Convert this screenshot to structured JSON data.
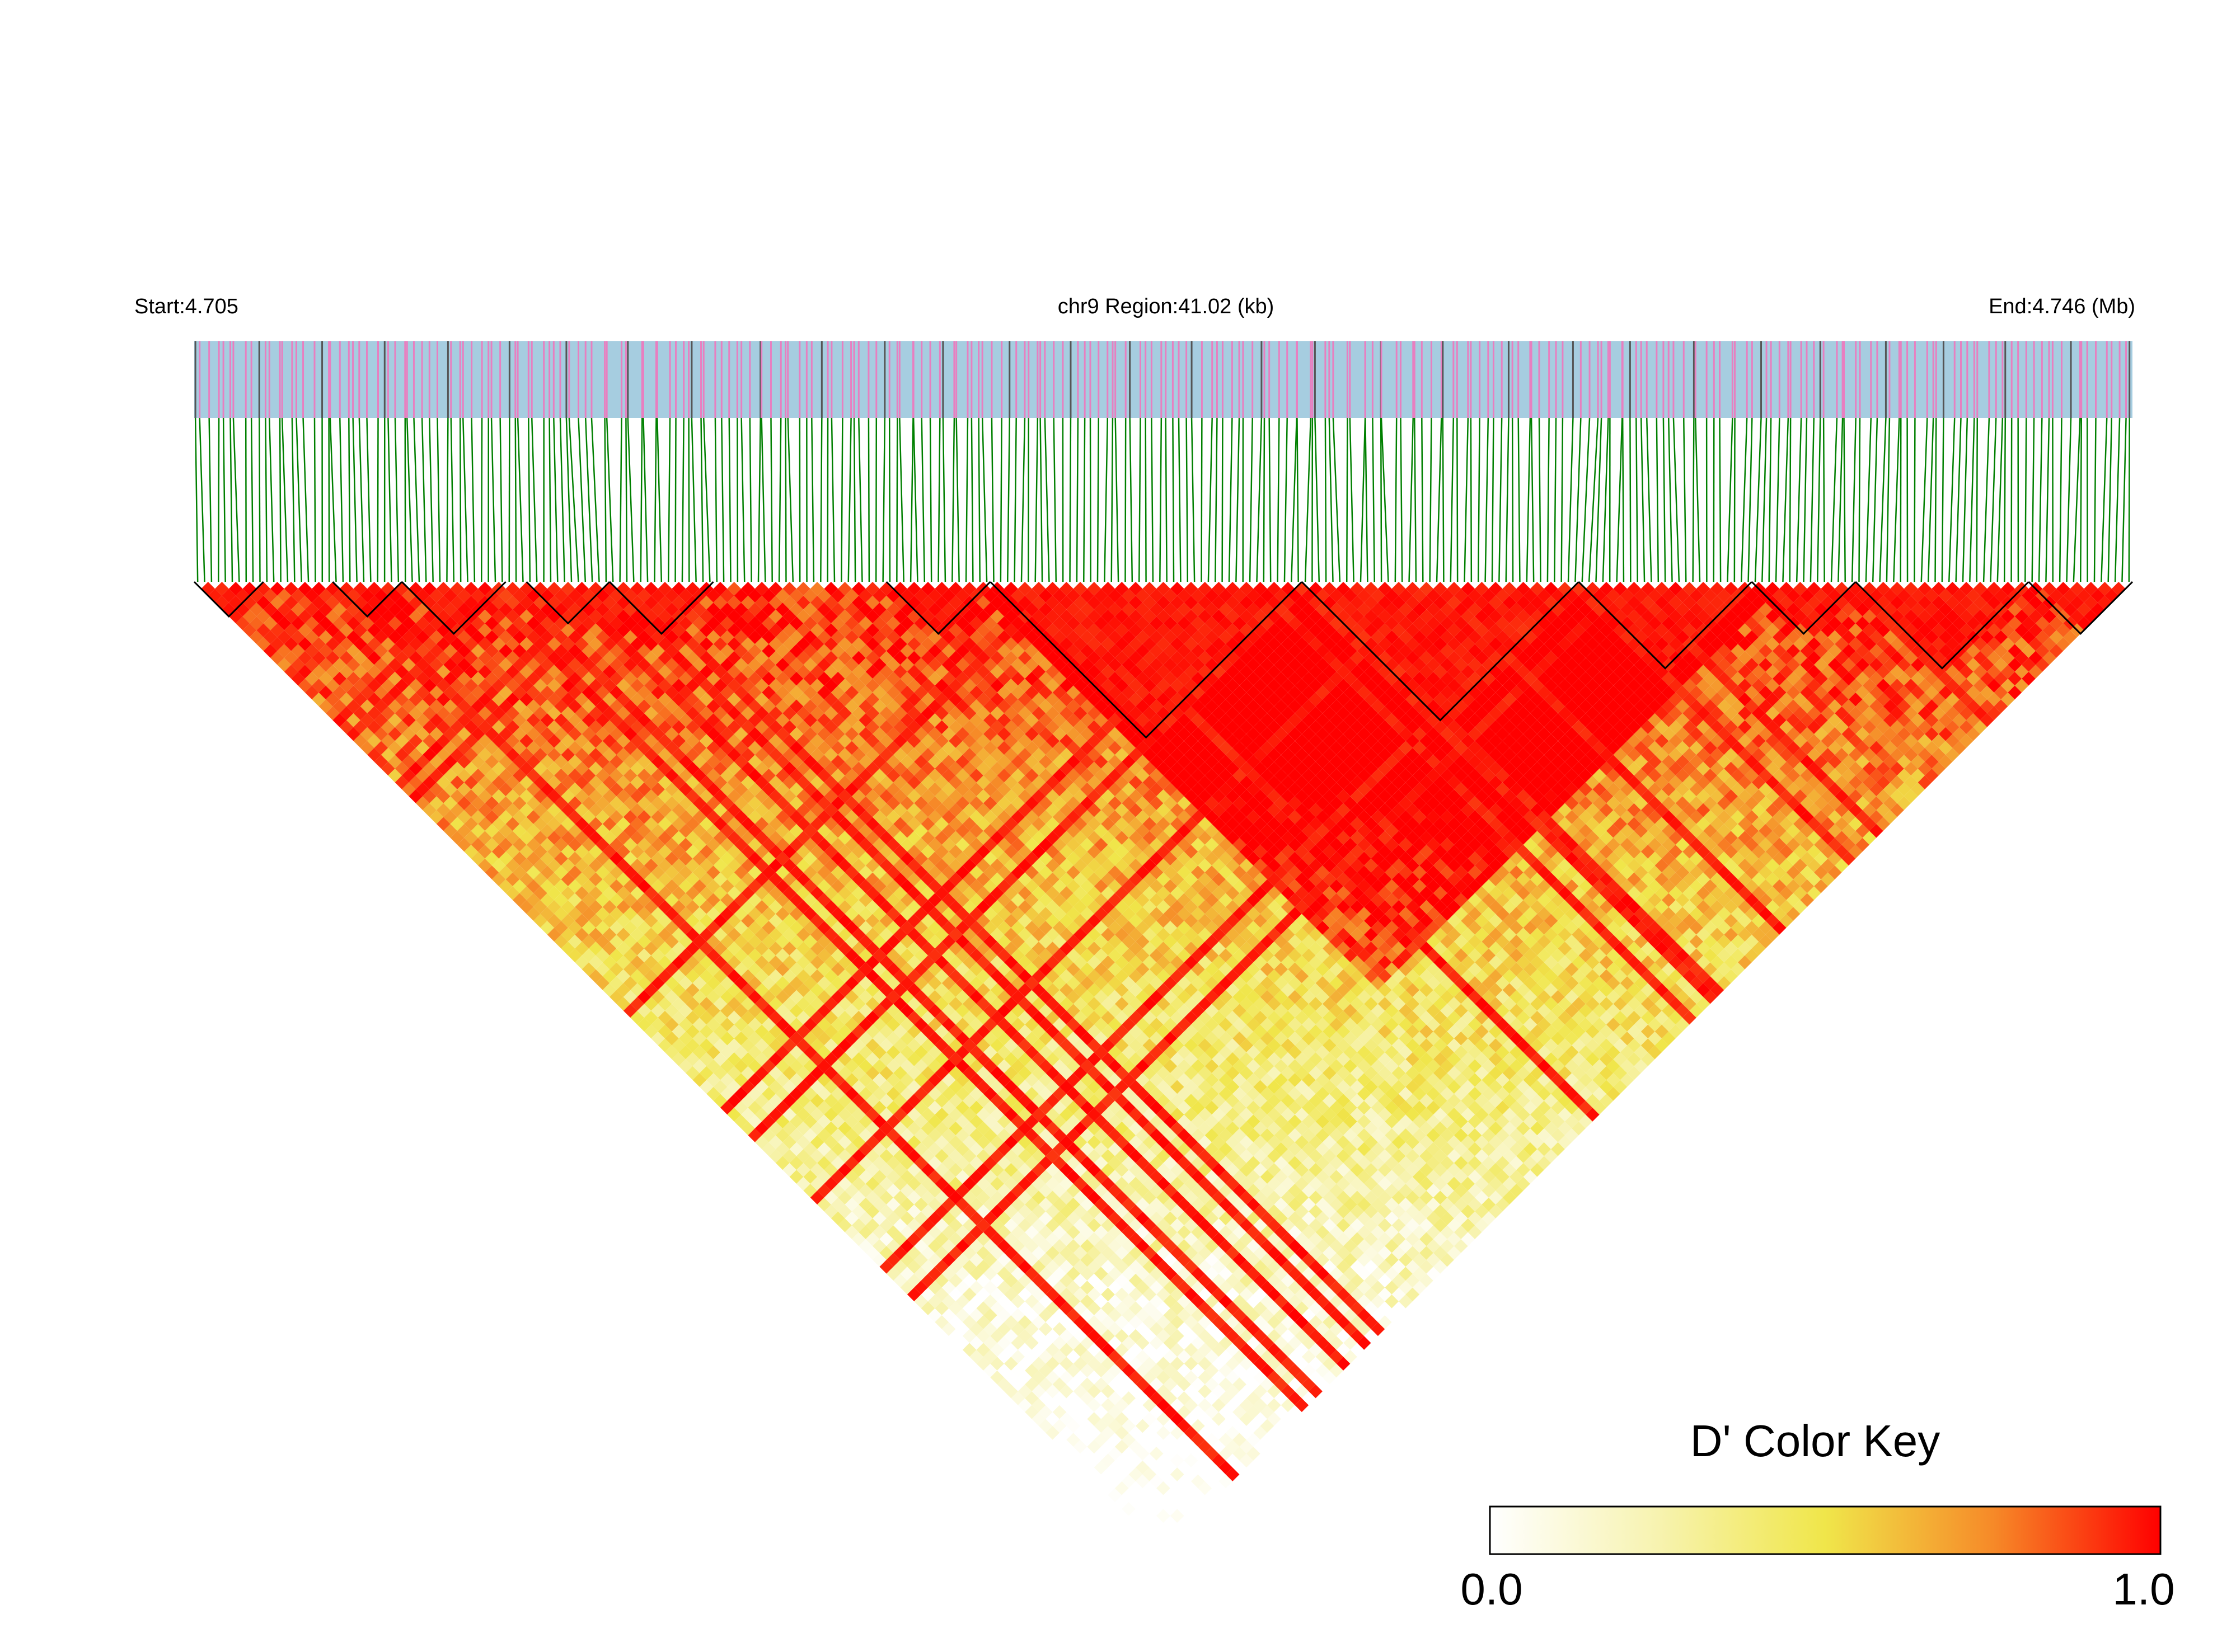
{
  "header": {
    "start_label": "Start:4.705",
    "region_label": "chr9 Region:41.02 (kb)",
    "end_label": "End:4.746 (Mb)"
  },
  "colors": {
    "track_background": "#a6cde0",
    "snp_tick": "#e87fc0",
    "connector": "#008000",
    "block_outline": "#000000",
    "d_low": "#ffffff",
    "d_mid": "#f2e84a",
    "d_high": "#ff0000"
  },
  "chart_data": {
    "type": "heatmap",
    "title": "",
    "region": {
      "chromosome": "chr9",
      "start_mb": 4.705,
      "end_mb": 4.746,
      "length_kb": 41.02
    },
    "snp_count": 280,
    "ld_blocks_snp_index_ranges": [
      [
        0,
        10
      ],
      [
        20,
        30
      ],
      [
        30,
        45
      ],
      [
        48,
        60
      ],
      [
        60,
        75
      ],
      [
        100,
        115
      ],
      [
        115,
        160
      ],
      [
        160,
        200
      ],
      [
        200,
        225
      ],
      [
        225,
        240
      ],
      [
        240,
        265
      ],
      [
        265,
        280
      ]
    ],
    "color_key": {
      "title": "D' Color Key",
      "min": 0.0,
      "max": 1.0,
      "min_label": "0.0",
      "max_label": "1.0",
      "stops": [
        "#ffffff",
        "#f2e84a",
        "#ff0000"
      ]
    }
  }
}
